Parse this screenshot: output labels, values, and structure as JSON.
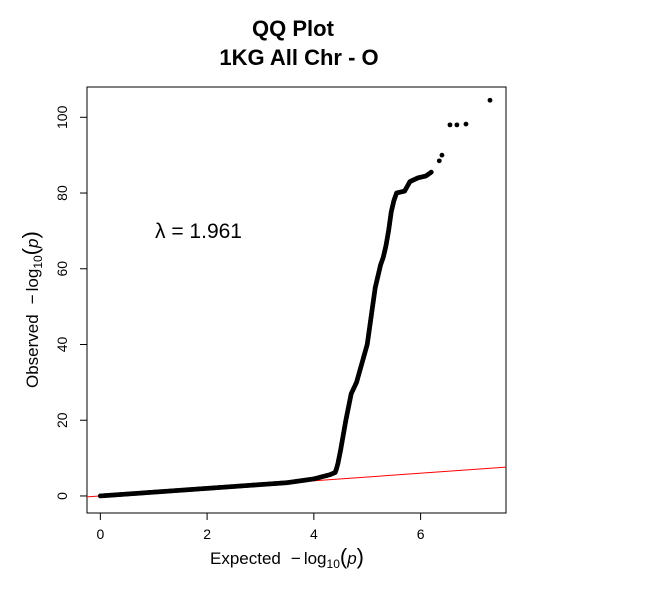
{
  "chart_data": {
    "type": "scatter",
    "title": "QQ Plot",
    "subtitle": "1KG All Chr - O",
    "xlabel": {
      "prefix": "Expected",
      "minus": "−",
      "log": "log",
      "base": "10",
      "var": "p"
    },
    "ylabel": {
      "prefix": "Observed",
      "minus": "−",
      "log": "log",
      "base": "10",
      "var": "p"
    },
    "xlim": [
      -0.25,
      7.6
    ],
    "ylim": [
      -4.5,
      108
    ],
    "xticks": [
      0,
      2,
      4,
      6
    ],
    "yticks": [
      0,
      20,
      40,
      60,
      80,
      100
    ],
    "annotation": "λ = 1.961",
    "reference_line": {
      "type": "identity",
      "color": "#ff0000"
    },
    "point_color": "#000000",
    "grid": false,
    "legend": "none",
    "curve": [
      [
        0,
        0
      ],
      [
        0.5,
        0.5
      ],
      [
        1,
        1
      ],
      [
        1.5,
        1.5
      ],
      [
        2,
        2
      ],
      [
        2.5,
        2.5
      ],
      [
        3,
        3
      ],
      [
        3.5,
        3.5
      ],
      [
        4,
        4.5
      ],
      [
        4.3,
        5.6
      ],
      [
        4.4,
        6.2
      ],
      [
        4.42,
        7
      ],
      [
        4.45,
        8.5
      ],
      [
        4.5,
        12
      ],
      [
        4.55,
        16
      ],
      [
        4.6,
        20
      ],
      [
        4.7,
        27
      ],
      [
        4.8,
        30
      ],
      [
        4.9,
        35
      ],
      [
        5.0,
        40
      ],
      [
        5.05,
        45
      ],
      [
        5.1,
        50
      ],
      [
        5.15,
        55
      ],
      [
        5.2,
        58
      ],
      [
        5.25,
        61
      ],
      [
        5.3,
        63
      ],
      [
        5.35,
        66
      ],
      [
        5.4,
        70
      ],
      [
        5.45,
        75
      ],
      [
        5.5,
        78
      ],
      [
        5.55,
        80
      ],
      [
        5.7,
        80.5
      ],
      [
        5.8,
        83
      ],
      [
        5.95,
        84
      ],
      [
        6.1,
        84.5
      ],
      [
        6.2,
        85.5
      ]
    ],
    "outliers": [
      {
        "x": 6.35,
        "y": 88.5
      },
      {
        "x": 6.4,
        "y": 90
      },
      {
        "x": 6.55,
        "y": 98
      },
      {
        "x": 6.68,
        "y": 98
      },
      {
        "x": 6.85,
        "y": 98.2
      },
      {
        "x": 7.3,
        "y": 104.5
      }
    ]
  }
}
